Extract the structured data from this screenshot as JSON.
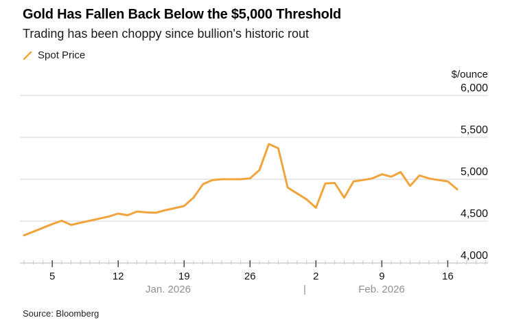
{
  "header": {
    "title": "Gold Has Fallen Back Below the $5,000 Threshold",
    "subtitle": "Trading has been choppy since bullion's historic rout"
  },
  "legend": {
    "items": [
      {
        "label": "Spot Price",
        "color": "#F1A43B"
      }
    ]
  },
  "source": "Source: Bloomberg",
  "colors": {
    "accent": "#F1A43B",
    "grid": "#dcdcdc",
    "axis_line": "#c8c8c8",
    "tick_minor": "#c4c4c4",
    "tick_major": "#3d3d3d",
    "text": "#111111",
    "muted": "#8f8f8f"
  },
  "chart_data": {
    "type": "line",
    "title": "Gold Has Fallen Back Below the $5,000 Threshold",
    "subtitle": "Trading has been choppy since bullion's historic rout",
    "unit_label": "$/ounce",
    "ylim": [
      4000,
      6000
    ],
    "grid": "horizontal",
    "legend_position": "top-left",
    "y_ticks": [
      {
        "value": 6000,
        "label": "6,000"
      },
      {
        "value": 5500,
        "label": "5,500"
      },
      {
        "value": 5000,
        "label": "5,000"
      },
      {
        "value": 4500,
        "label": "4,500"
      },
      {
        "value": 4000,
        "label": "4,000"
      }
    ],
    "x": [
      "Jan 2",
      "Jan 3",
      "Jan 4",
      "Jan 5",
      "Jan 6",
      "Jan 7",
      "Jan 8",
      "Jan 9",
      "Jan 10",
      "Jan 11",
      "Jan 12",
      "Jan 13",
      "Jan 14",
      "Jan 15",
      "Jan 16",
      "Jan 17",
      "Jan 18",
      "Jan 19",
      "Jan 20",
      "Jan 21",
      "Jan 22",
      "Jan 23",
      "Jan 24",
      "Jan 25",
      "Jan 26",
      "Jan 27",
      "Jan 28",
      "Jan 29",
      "Jan 30",
      "Jan 31",
      "Feb 1",
      "Feb 2",
      "Feb 3",
      "Feb 4",
      "Feb 5",
      "Feb 6",
      "Feb 7",
      "Feb 8",
      "Feb 9",
      "Feb 10",
      "Feb 11",
      "Feb 12",
      "Feb 13",
      "Feb 14",
      "Feb 15",
      "Feb 16",
      "Feb 17"
    ],
    "series": [
      {
        "name": "Spot Price",
        "color": "#F1A43B",
        "values": [
          4330,
          4375,
          4420,
          4465,
          4505,
          4455,
          4480,
          4505,
          4530,
          4555,
          4590,
          4570,
          4615,
          4605,
          4600,
          4630,
          4655,
          4680,
          4780,
          4940,
          4990,
          5000,
          5000,
          5000,
          5010,
          5110,
          5420,
          5370,
          4900,
          4830,
          4760,
          4660,
          4950,
          4955,
          4780,
          4975,
          4990,
          5010,
          5060,
          5030,
          5085,
          4920,
          5045,
          5010,
          4990,
          4975,
          4880
        ]
      }
    ],
    "x_major_ticks": [
      {
        "label": "5",
        "index": 3
      },
      {
        "label": "12",
        "index": 10
      },
      {
        "label": "19",
        "index": 17
      },
      {
        "label": "26",
        "index": 24
      },
      {
        "label": "2",
        "index": 31
      },
      {
        "label": "9",
        "index": 38
      },
      {
        "label": "16",
        "index": 45
      }
    ],
    "month_labels": [
      {
        "label": "Jan. 2026"
      },
      {
        "label": "Feb. 2026"
      }
    ],
    "month_separator": "|"
  }
}
